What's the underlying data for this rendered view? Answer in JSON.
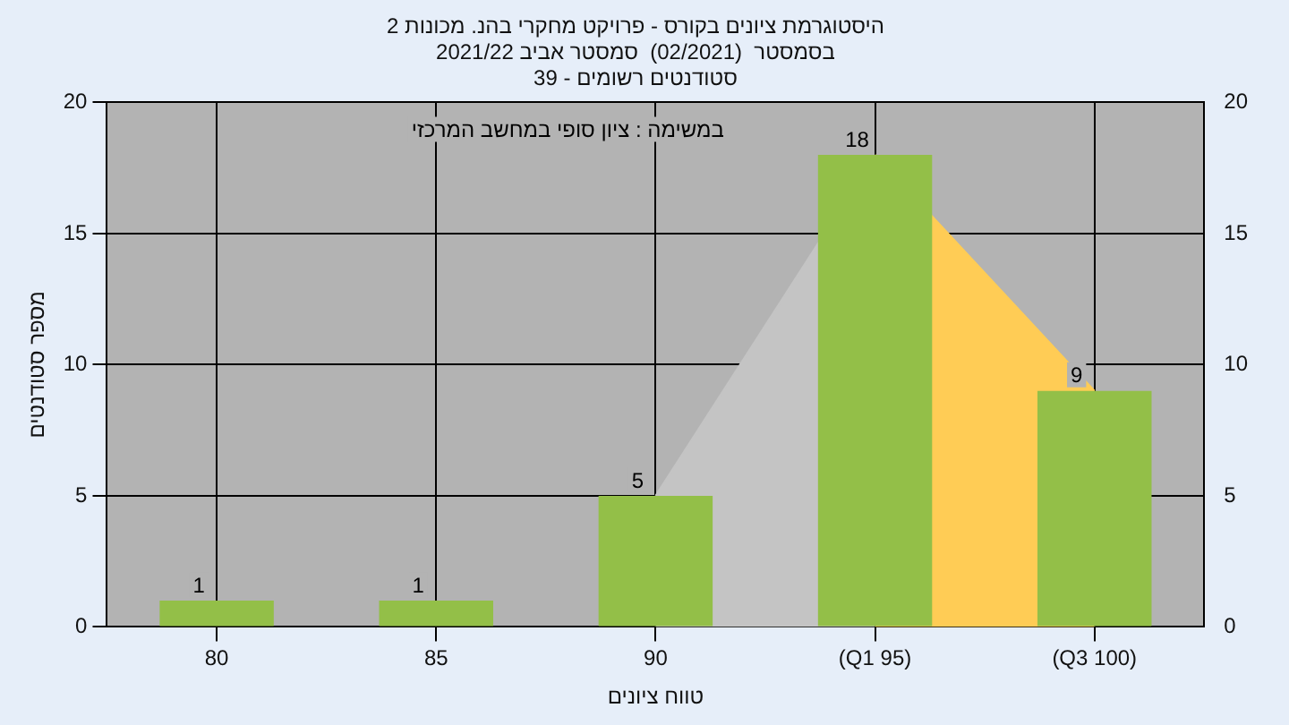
{
  "chart_data": {
    "type": "bar",
    "title": "היסטוגרמת ציונים בקורס - פרויקט מחקרי בהנ. מכונות 2",
    "subtitle": "בסמסטר  (02/2021)  סמסטר אביב 2021/22\nסטודנטים רשומים - 39",
    "xlabel": "טווח ציונים",
    "ylabel": "מספר סטודנטים",
    "annotations": [
      "במשימה : ציון סופי במחשב המרכזי"
    ],
    "categories": [
      "80",
      "85",
      "90",
      "(Q1 95)",
      "(Q3 100)"
    ],
    "series": [
      {
        "color": "#93bf48",
        "values": [
          1,
          1,
          5,
          18,
          9
        ],
        "value_labels": [
          "1",
          "1",
          "5",
          "18",
          "9"
        ]
      },
      {
        "type": "area",
        "color": "#c4c4c4",
        "values": [
          null,
          null,
          5,
          18,
          null
        ]
      },
      {
        "type": "area",
        "color": "#ffcc55",
        "values": [
          null,
          null,
          null,
          18,
          9
        ]
      }
    ],
    "ylim": [
      0,
      20
    ],
    "yticks": [
      0,
      5,
      10,
      15,
      20
    ],
    "y2lim": [
      0,
      20
    ],
    "y2ticks": [
      0,
      5,
      10,
      15,
      20
    ],
    "grid": true
  }
}
